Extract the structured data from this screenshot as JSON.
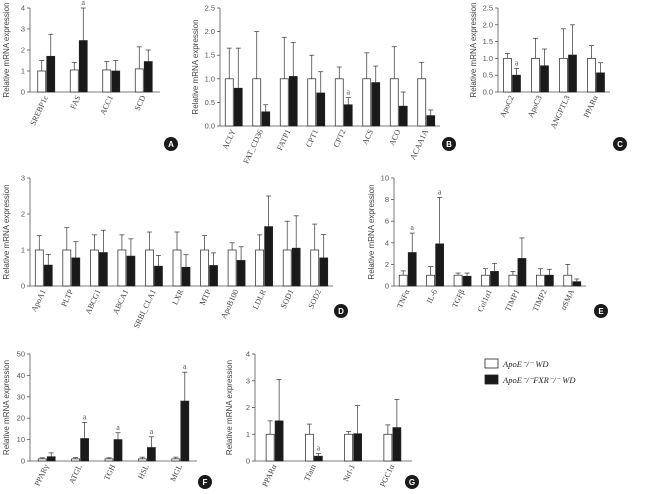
{
  "colors": {
    "wd_fill": "#ffffff",
    "fxr_fill": "#1a1a1a",
    "badge_bg": "#1a1a1a",
    "axis": "#555555"
  },
  "legend": [
    {
      "label": "ApoE⁻/⁻ WD",
      "fill": "#ffffff"
    },
    {
      "label": "ApoE⁻/⁻FXR⁻/⁻ WD",
      "fill": "#1a1a1a"
    }
  ],
  "chart_data": [
    {
      "type": "bar",
      "panel": "A",
      "ylabel": "Relative mRNA expression",
      "ylim": [
        0,
        4
      ],
      "ticks": [
        0,
        1,
        2,
        3,
        4
      ],
      "categories": [
        "SREBP1c",
        "FAS",
        "ACC1",
        "SCD"
      ],
      "series": [
        {
          "values": [
            1.0,
            1.05,
            1.05,
            1.1
          ],
          "errors": [
            0.5,
            0.35,
            0.4,
            1.05
          ]
        },
        {
          "values": [
            1.7,
            2.45,
            1.0,
            1.45
          ],
          "errors": [
            1.05,
            1.55,
            0.5,
            0.55
          ]
        }
      ],
      "sig": [
        1
      ]
    },
    {
      "type": "bar",
      "panel": "B",
      "ylabel": "Relative mRNA expression",
      "ylim": [
        0,
        2.5
      ],
      "ticks": [
        0,
        0.5,
        1.0,
        1.5,
        2.0,
        2.5
      ],
      "categories": [
        "ACLY",
        "FAT_CD36",
        "FATP1",
        "CPT1",
        "CPT2",
        "ACS",
        "ACO",
        "ACAA1A"
      ],
      "series": [
        {
          "values": [
            1.0,
            1.0,
            1.0,
            1.0,
            1.0,
            1.0,
            1.0,
            1.0
          ],
          "errors": [
            0.65,
            1.0,
            0.88,
            0.5,
            0.25,
            0.55,
            0.68,
            0.35
          ]
        },
        {
          "values": [
            0.8,
            0.3,
            1.05,
            0.7,
            0.45,
            0.92,
            0.42,
            0.22
          ],
          " errors": [],
          "errors": [
            0.85,
            0.15,
            0.72,
            0.45,
            0.15,
            0.35,
            0.3,
            0.12
          ]
        }
      ],
      "sig": [
        4
      ]
    },
    {
      "type": "bar",
      "panel": "C",
      "ylabel": "Relative mRNA expression",
      "ylim": [
        0,
        2.5
      ],
      "ticks": [
        0,
        0.5,
        1.0,
        1.5,
        2.0,
        2.5
      ],
      "categories": [
        "ApoC2",
        "ApoC3",
        "ANGPTL3",
        "PPARα"
      ],
      "series": [
        {
          "values": [
            1.0,
            1.0,
            1.0,
            1.0
          ],
          "errors": [
            0.15,
            0.6,
            0.88,
            0.38
          ]
        },
        {
          "values": [
            0.5,
            0.78,
            1.1,
            0.57
          ],
          "errors": [
            0.2,
            0.5,
            0.9,
            0.3
          ]
        }
      ],
      "sig": [
        0
      ]
    },
    {
      "type": "bar",
      "panel": "D",
      "ylabel": "Relative mRNA expression",
      "ylim": [
        0,
        3
      ],
      "ticks": [
        0,
        1,
        2,
        3
      ],
      "categories": [
        "ApoA1",
        "PLTP",
        "ABCG1",
        "ABCA1",
        "SRBI_CLA1",
        "LXR",
        "MTP",
        "ApoB100",
        "LDLR",
        "SOD1",
        "SOD2"
      ],
      "series": [
        {
          "values": [
            1.0,
            1.0,
            1.0,
            1.0,
            1.0,
            1.0,
            1.0,
            1.0,
            1.0,
            1.0,
            1.0
          ],
          "errors": [
            0.4,
            0.62,
            0.42,
            0.42,
            0.5,
            0.5,
            0.4,
            0.2,
            0.42,
            0.8,
            0.72
          ]
        },
        {
          "values": [
            0.58,
            0.78,
            0.93,
            0.83,
            0.55,
            0.52,
            0.57,
            0.71,
            1.65,
            1.05,
            0.78
          ],
          " errors": [],
          "errors": [
            0.3,
            0.45,
            0.62,
            0.48,
            0.3,
            0.35,
            0.35,
            0.38,
            0.85,
            0.9,
            0.65
          ]
        }
      ],
      "sig": []
    },
    {
      "type": "bar",
      "panel": "E",
      "ylabel": "Relative mRNA expression",
      "ylim": [
        0,
        10
      ],
      "ticks": [
        0,
        2,
        4,
        6,
        8,
        10
      ],
      "categories": [
        "TNFα",
        "IL-6",
        "TGFβ",
        "Col1α1",
        "TIMP1",
        "TIMP2",
        "αSMA"
      ],
      "series": [
        {
          "values": [
            1.0,
            1.0,
            1.0,
            1.0,
            1.0,
            1.0,
            1.0
          ],
          "errors": [
            0.4,
            0.8,
            0.2,
            0.6,
            0.35,
            0.6,
            1.0
          ]
        },
        {
          "values": [
            3.1,
            3.9,
            0.9,
            1.35,
            2.55,
            1.0,
            0.4
          ],
          " errors": [],
          "errors": [
            1.8,
            4.3,
            0.3,
            0.75,
            1.9,
            0.55,
            0.25
          ]
        }
      ],
      "sig": [
        0,
        1
      ]
    },
    {
      "type": "bar",
      "panel": "F",
      "ylabel": "Relative mRNA expression",
      "ylim": [
        0,
        50
      ],
      "ticks": [
        0,
        10,
        20,
        30,
        40,
        50
      ],
      "categories": [
        "PPARγ",
        "ATGL",
        "TGH",
        "HSL",
        "MGL"
      ],
      "series": [
        {
          "values": [
            1.0,
            1.0,
            1.0,
            1.0,
            1.0
          ],
          "errors": [
            0.5,
            0.6,
            0.5,
            0.8,
            0.8
          ]
        },
        {
          "values": [
            2.0,
            10.5,
            10.0,
            6.3,
            28.0
          ],
          "errors": [
            1.8,
            7.5,
            3.2,
            5.0,
            13.5
          ]
        }
      ],
      "sig": [
        1,
        2,
        3,
        4
      ]
    },
    {
      "type": "bar",
      "panel": "G",
      "ylabel": "Relative mRNA expression",
      "ylim": [
        0,
        4
      ],
      "ticks": [
        0,
        1,
        2,
        3,
        4
      ],
      "categories": [
        "PPARα",
        "Tfam",
        "Nrf-1",
        "PGC1α"
      ],
      "series": [
        {
          "values": [
            1.0,
            1.0,
            1.0,
            1.0
          ],
          "errors": [
            0.5,
            0.38,
            0.1,
            0.35
          ]
        },
        {
          "values": [
            1.5,
            0.18,
            1.02,
            1.25
          ],
          "errors": [
            1.55,
            0.1,
            1.05,
            1.05
          ]
        }
      ],
      "sig": [
        1
      ]
    }
  ],
  "sig_label": "a"
}
